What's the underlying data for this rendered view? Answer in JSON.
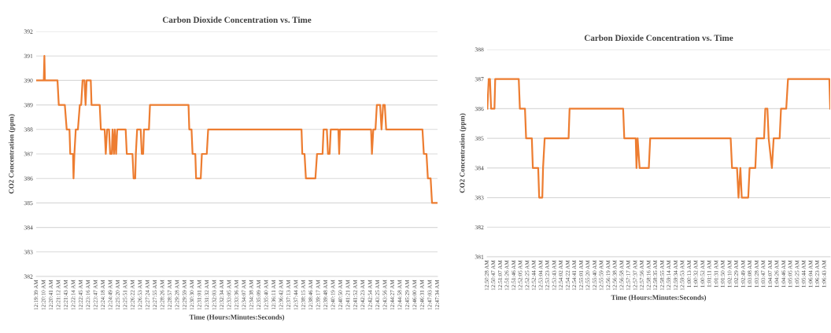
{
  "chart_data": [
    {
      "type": "line",
      "title": "Carbon Dioxide Concentration vs. Time",
      "xlabel": "Time (Hours:Minutes:Seconds)",
      "ylabel": "CO2 Concentration (ppm)",
      "grid": "y",
      "series": [
        {
          "color": "#ed7d31",
          "x": [
            0.3272,
            0.336,
            0.3367,
            0.3373,
            0.3519,
            0.3534,
            0.3604,
            0.3626,
            0.3658,
            0.3667,
            0.3699,
            0.3705,
            0.3715,
            0.3731,
            0.3756,
            0.3778,
            0.3794,
            0.381,
            0.3832,
            0.3845,
            0.3857,
            0.3905,
            0.3914,
            0.4009,
            0.4022,
            0.4066,
            0.4079,
            0.4095,
            0.4117,
            0.413,
            0.4149,
            0.4158,
            0.4174,
            0.4184,
            0.4199,
            0.4212,
            0.431,
            0.4323,
            0.4389,
            0.4402,
            0.4421,
            0.4428,
            0.4443,
            0.4484,
            0.4497,
            0.4513,
            0.4522,
            0.458,
            0.4592,
            0.5039,
            0.5048,
            0.5074,
            0.5086,
            0.5118,
            0.5127,
            0.5181,
            0.5194,
            0.5251,
            0.5267,
            0.635,
            0.6359,
            0.6385,
            0.6401,
            0.6511,
            0.653,
            0.6594,
            0.6606,
            0.6644,
            0.6657,
            0.6676,
            0.6689,
            0.6777,
            0.6787,
            0.6796,
            0.7157,
            0.7167,
            0.7183,
            0.7208,
            0.7224,
            0.7262,
            0.7278,
            0.7297,
            0.7316,
            0.7332,
            0.7753,
            0.7769,
            0.78,
            0.7816,
            0.7848,
            0.7864,
            0.7927
          ],
          "values": [
            390,
            390,
            391,
            390,
            390,
            389,
            389,
            388,
            388,
            387,
            387,
            386,
            387,
            388,
            388,
            389,
            389,
            390,
            390,
            389,
            390,
            390,
            389,
            389,
            388,
            388,
            387,
            388,
            388,
            387,
            387,
            388,
            387,
            388,
            387,
            388,
            388,
            387,
            387,
            386,
            386,
            387,
            388,
            388,
            387,
            387,
            388,
            388,
            389,
            389,
            388,
            388,
            387,
            387,
            386,
            386,
            387,
            387,
            388,
            388,
            387,
            387,
            386,
            386,
            387,
            387,
            388,
            388,
            387,
            387,
            388,
            388,
            387,
            388,
            388,
            387,
            388,
            388,
            389,
            389,
            388,
            389,
            389,
            388,
            388,
            387,
            387,
            386,
            386,
            385,
            385
          ]
        }
      ],
      "xlim": [
        0.3272,
        0.7928
      ],
      "ylim": [
        382,
        392
      ],
      "yticks": [
        382,
        383,
        384,
        385,
        386,
        387,
        388,
        389,
        390,
        391,
        392
      ],
      "xticks": [
        {
          "value": 0.3275,
          "label": "12:19:39 AM"
        },
        {
          "value": 0.3361,
          "label": "12:20:10 AM"
        },
        {
          "value": 0.3447,
          "label": "12:20:41 AM"
        },
        {
          "value": 0.3533,
          "label": "12:21:12 AM"
        },
        {
          "value": 0.3619,
          "label": "12:21:43 AM"
        },
        {
          "value": 0.3706,
          "label": "12:22:14 AM"
        },
        {
          "value": 0.3792,
          "label": "12:22:45 AM"
        },
        {
          "value": 0.3878,
          "label": "12:23:16 AM"
        },
        {
          "value": 0.3964,
          "label": "12:23:47 AM"
        },
        {
          "value": 0.405,
          "label": "12:24:18 AM"
        },
        {
          "value": 0.4136,
          "label": "12:24:49 AM"
        },
        {
          "value": 0.4222,
          "label": "12:25:20 AM"
        },
        {
          "value": 0.4308,
          "label": "12:25:51 AM"
        },
        {
          "value": 0.4394,
          "label": "12:26:22 AM"
        },
        {
          "value": 0.4481,
          "label": "12:26:53 AM"
        },
        {
          "value": 0.4567,
          "label": "12:27:24 AM"
        },
        {
          "value": 0.4653,
          "label": "12:27:55 AM"
        },
        {
          "value": 0.4739,
          "label": "12:28:26 AM"
        },
        {
          "value": 0.4825,
          "label": "12:28:57 AM"
        },
        {
          "value": 0.4911,
          "label": "12:29:28 AM"
        },
        {
          "value": 0.4997,
          "label": "12:29:59 AM"
        },
        {
          "value": 0.5083,
          "label": "12:30:30 AM"
        },
        {
          "value": 0.5169,
          "label": "12:31:01 AM"
        },
        {
          "value": 0.5256,
          "label": "12:31:32 AM"
        },
        {
          "value": 0.5342,
          "label": "12:32:03 AM"
        },
        {
          "value": 0.5428,
          "label": "12:32:34 AM"
        },
        {
          "value": 0.5514,
          "label": "12:33:05 AM"
        },
        {
          "value": 0.56,
          "label": "12:33:36 AM"
        },
        {
          "value": 0.5686,
          "label": "12:34:07 AM"
        },
        {
          "value": 0.5772,
          "label": "12:34:38 AM"
        },
        {
          "value": 0.5858,
          "label": "12:35:09 AM"
        },
        {
          "value": 0.5944,
          "label": "12:35:40 AM"
        },
        {
          "value": 0.6031,
          "label": "12:36:11 AM"
        },
        {
          "value": 0.6117,
          "label": "12:36:42 AM"
        },
        {
          "value": 0.6203,
          "label": "12:37:13 AM"
        },
        {
          "value": 0.6289,
          "label": "12:37:44 AM"
        },
        {
          "value": 0.6375,
          "label": "12:38:15 AM"
        },
        {
          "value": 0.6461,
          "label": "12:38:46 AM"
        },
        {
          "value": 0.6547,
          "label": "12:39:17 AM"
        },
        {
          "value": 0.6633,
          "label": "12:39:48 AM"
        },
        {
          "value": 0.6719,
          "label": "12:40:19 AM"
        },
        {
          "value": 0.6806,
          "label": "12:40:50 AM"
        },
        {
          "value": 0.6892,
          "label": "12:41:21 AM"
        },
        {
          "value": 0.6978,
          "label": "12:41:52 AM"
        },
        {
          "value": 0.7064,
          "label": "12:42:23 AM"
        },
        {
          "value": 0.715,
          "label": "12:42:54 AM"
        },
        {
          "value": 0.7236,
          "label": "12:43:25 AM"
        },
        {
          "value": 0.7322,
          "label": "12:43:56 AM"
        },
        {
          "value": 0.7408,
          "label": "12:44:27 AM"
        },
        {
          "value": 0.7494,
          "label": "12:44:58 AM"
        },
        {
          "value": 0.7581,
          "label": "12:45:29 AM"
        },
        {
          "value": 0.7667,
          "label": "12:46:00 AM"
        },
        {
          "value": 0.7753,
          "label": "12:46:31 AM"
        },
        {
          "value": 0.7842,
          "label": "12:47:03 AM"
        },
        {
          "value": 0.7928,
          "label": "12:47:34 AM"
        }
      ]
    },
    {
      "type": "line",
      "title": "Carbon Dioxide Concentration vs. Time",
      "xlabel": "Time (Hours:Minutes:Seconds)",
      "ylabel": "CO2 Concentration (ppm)",
      "grid": "y",
      "series": [
        {
          "color": "#ed7d31",
          "x": [
            0.8413,
            0.8424,
            0.8434,
            0.8443,
            0.847,
            0.8476,
            0.8665,
            0.8674,
            0.8715,
            0.8724,
            0.877,
            0.8778,
            0.8821,
            0.8829,
            0.8854,
            0.886,
            0.8873,
            0.9065,
            0.9073,
            0.9503,
            0.9512,
            0.9604,
            0.961,
            0.9619,
            0.9635,
            0.9709,
            0.972,
            1.0366,
            1.0377,
            1.0417,
            1.0429,
            1.0444,
            1.0455,
            1.0507,
            1.0518,
            1.0564,
            1.0574,
            1.0634,
            1.0644,
            1.0661,
            1.0671,
            1.0697,
            1.0711,
            1.0759,
            1.077,
            1.0812,
            1.0826,
            1.1158,
            1.1165
          ],
          "values": [
            386,
            387,
            387,
            386,
            386,
            387,
            387,
            386,
            386,
            385,
            385,
            384,
            384,
            383,
            383,
            384,
            385,
            385,
            386,
            386,
            385,
            385,
            384,
            385,
            384,
            384,
            385,
            385,
            384,
            384,
            383,
            384,
            383,
            383,
            384,
            384,
            385,
            385,
            386,
            386,
            385,
            384,
            385,
            385,
            386,
            386,
            387,
            387,
            386
          ]
        }
      ],
      "xlim": [
        0.8411,
        1.1165
      ],
      "ylim": [
        381,
        388
      ],
      "yticks": [
        381,
        382,
        383,
        384,
        385,
        386,
        387,
        388
      ],
      "xticks": [
        {
          "value": 0.84111,
          "label": "12:50:28 AM"
        },
        {
          "value": 0.84639,
          "label": "12:50:47 AM"
        },
        {
          "value": 0.85194,
          "label": "12:51:07 AM"
        },
        {
          "value": 0.85722,
          "label": "12:51:26 AM"
        },
        {
          "value": 0.86278,
          "label": "12:51:46 AM"
        },
        {
          "value": 0.86806,
          "label": "12:52:05 AM"
        },
        {
          "value": 0.87361,
          "label": "12:52:25 AM"
        },
        {
          "value": 0.87889,
          "label": "12:52:44 AM"
        },
        {
          "value": 0.88444,
          "label": "12:53:04 AM"
        },
        {
          "value": 0.88972,
          "label": "12:53:23 AM"
        },
        {
          "value": 0.89528,
          "label": "12:53:43 AM"
        },
        {
          "value": 0.90056,
          "label": "12:54:02 AM"
        },
        {
          "value": 0.90611,
          "label": "12:54:22 AM"
        },
        {
          "value": 0.91139,
          "label": "12:54:41 AM"
        },
        {
          "value": 0.91694,
          "label": "12:55:01 AM"
        },
        {
          "value": 0.92222,
          "label": "12:55:20 AM"
        },
        {
          "value": 0.92778,
          "label": "12:55:40 AM"
        },
        {
          "value": 0.93306,
          "label": "12:55:59 AM"
        },
        {
          "value": 0.93861,
          "label": "12:56:19 AM"
        },
        {
          "value": 0.94389,
          "label": "12:56:38 AM"
        },
        {
          "value": 0.94944,
          "label": "12:56:58 AM"
        },
        {
          "value": 0.95472,
          "label": "12:57:17 AM"
        },
        {
          "value": 0.96028,
          "label": "12:57:37 AM"
        },
        {
          "value": 0.96556,
          "label": "12:57:56 AM"
        },
        {
          "value": 0.97111,
          "label": "12:58:16 AM"
        },
        {
          "value": 0.97639,
          "label": "12:58:35 AM"
        },
        {
          "value": 0.98194,
          "label": "12:58:55 AM"
        },
        {
          "value": 0.98722,
          "label": "12:59:14 AM"
        },
        {
          "value": 0.99278,
          "label": "12:59:34 AM"
        },
        {
          "value": 0.99806,
          "label": "12:59:53 AM"
        },
        {
          "value": 1.00361,
          "label": "1:00:13 AM"
        },
        {
          "value": 1.00889,
          "label": "1:00:32 AM"
        },
        {
          "value": 1.01444,
          "label": "1:00:52 AM"
        },
        {
          "value": 1.01972,
          "label": "1:01:11 AM"
        },
        {
          "value": 1.02528,
          "label": "1:01:31 AM"
        },
        {
          "value": 1.03056,
          "label": "1:01:50 AM"
        },
        {
          "value": 1.03611,
          "label": "1:02:10 AM"
        },
        {
          "value": 1.04139,
          "label": "1:02:29 AM"
        },
        {
          "value": 1.04694,
          "label": "1:02:49 AM"
        },
        {
          "value": 1.05222,
          "label": "1:03:08 AM"
        },
        {
          "value": 1.05778,
          "label": "1:03:28 AM"
        },
        {
          "value": 1.06306,
          "label": "1:03:47 AM"
        },
        {
          "value": 1.06861,
          "label": "1:04:07 AM"
        },
        {
          "value": 1.07389,
          "label": "1:04:26 AM"
        },
        {
          "value": 1.07944,
          "label": "1:04:46 AM"
        },
        {
          "value": 1.08472,
          "label": "1:05:05 AM"
        },
        {
          "value": 1.09028,
          "label": "1:05:25 AM"
        },
        {
          "value": 1.09556,
          "label": "1:05:44 AM"
        },
        {
          "value": 1.10111,
          "label": "1:06:04 AM"
        },
        {
          "value": 1.10639,
          "label": "1:06:23 AM"
        },
        {
          "value": 1.11194,
          "label": "1:06:43 AM"
        }
      ]
    }
  ]
}
